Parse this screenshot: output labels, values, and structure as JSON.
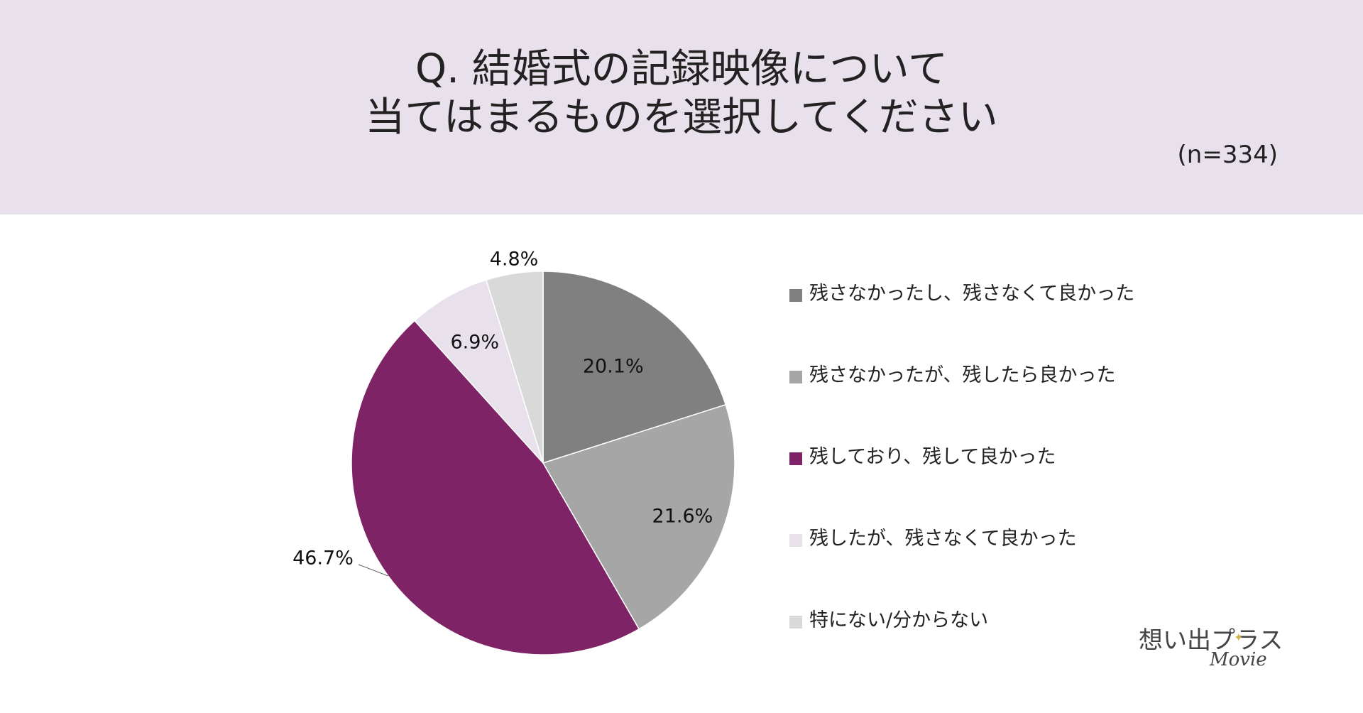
{
  "header": {
    "title_line1": "Q. 結婚式の記録映像について",
    "title_line2": "当てはまるものを選択してください",
    "sample_size": "(n=334)"
  },
  "chart_data": {
    "type": "pie",
    "title": "Q. 結婚式の記録映像について 当てはまるものを選択してください",
    "categories": [
      "残さなかったし、残さなくて良かった",
      "残さなかったが、残したら良かった",
      "残しており、残して良かった",
      "残したが、残さなくて良かった",
      "特にない/分からない"
    ],
    "values": [
      20.1,
      21.6,
      46.7,
      6.9,
      4.8
    ],
    "labels": [
      "20.1%",
      "21.6%",
      "46.7%",
      "6.9%",
      "4.8%"
    ],
    "colors": [
      "#808080",
      "#a6a6a6",
      "#7e2366",
      "#e8e1ec",
      "#d9d9d9"
    ],
    "legend_position": "right",
    "start_angle": "12 o'clock",
    "direction": "clockwise"
  },
  "logo": {
    "name": "想い出プラス",
    "sub": "Movie"
  }
}
